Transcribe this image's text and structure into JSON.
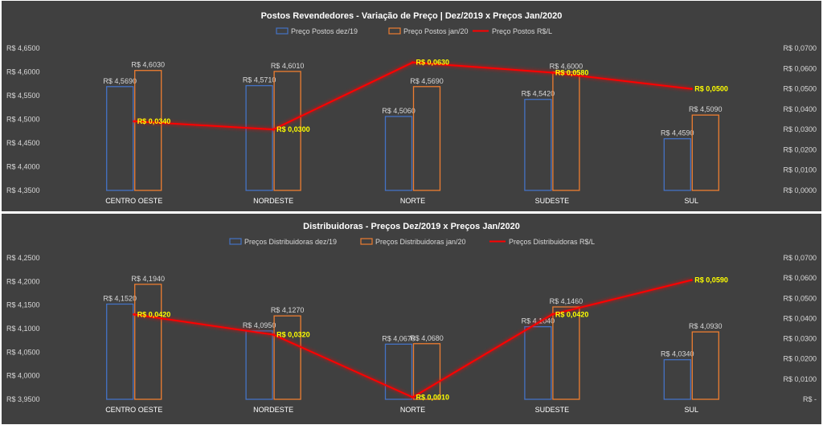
{
  "colors": {
    "background": "#404040",
    "series_dez": "#4472c4",
    "series_jan": "#ed7d31",
    "series_diff": "#ff0000",
    "diff_label": "#ffff00",
    "text": "#d9d9d9"
  },
  "chart_data": [
    {
      "type": "bar",
      "title": "Postos Revendedores - Variação de Preço  | Dez/2019 x Preços Jan/2020",
      "categories": [
        "CENTRO OESTE",
        "NORDESTE",
        "NORTE",
        "SUDESTE",
        "SUL"
      ],
      "series": [
        {
          "name": "Preço Postos dez/19",
          "axis": "left",
          "kind": "bar",
          "values": [
            4.569,
            4.571,
            4.506,
            4.542,
            4.459
          ],
          "labels": [
            "R$ 4,5690",
            "R$ 4,5710",
            "R$ 4,5060",
            "R$ 4,5420",
            "R$ 4,4590"
          ]
        },
        {
          "name": "Preço Postos jan/20",
          "axis": "left",
          "kind": "bar",
          "values": [
            4.603,
            4.601,
            4.569,
            4.6,
            4.509
          ],
          "labels": [
            "R$ 4,6030",
            "R$ 4,6010",
            "R$ 4,5690",
            "R$ 4,6000",
            "R$ 4,5090"
          ]
        },
        {
          "name": "Preço Postos R$/L",
          "axis": "right",
          "kind": "line",
          "values": [
            0.034,
            0.03,
            0.063,
            0.058,
            0.05
          ],
          "labels": [
            "R$ 0,0340",
            "R$ 0,0300",
            "R$ 0,0630",
            "R$ 0,0580",
            "R$ 0,0500"
          ]
        }
      ],
      "ylim": [
        4.35,
        4.65
      ],
      "y2lim": [
        0.0,
        0.07
      ],
      "yticks": [
        "R$ 4,3500",
        "R$ 4,4000",
        "R$ 4,4500",
        "R$ 4,5000",
        "R$ 4,5500",
        "R$ 4,6000",
        "R$ 4,6500"
      ],
      "y2ticks": [
        "R$ 0,0000",
        "R$ 0,0100",
        "R$ 0,0200",
        "R$ 0,0300",
        "R$ 0,0400",
        "R$ 0,0500",
        "R$ 0,0600",
        "R$ 0,0700"
      ],
      "legend_position": "top",
      "grid": false
    },
    {
      "type": "bar",
      "title": "Distribuidoras - Preços Dez/2019 x Preços Jan/2020",
      "categories": [
        "CENTRO OESTE",
        "NORDESTE",
        "NORTE",
        "SUDESTE",
        "SUL"
      ],
      "series": [
        {
          "name": "Preços Distribuidoras dez/19",
          "axis": "left",
          "kind": "bar",
          "values": [
            4.152,
            4.095,
            4.067,
            4.104,
            4.034
          ],
          "labels": [
            "R$ 4,1520",
            "R$ 4,0950",
            "R$ 4,0670",
            "R$ 4,1040",
            "R$ 4,0340"
          ]
        },
        {
          "name": "Preços Distribuidoras jan/20",
          "axis": "left",
          "kind": "bar",
          "values": [
            4.194,
            4.127,
            4.068,
            4.146,
            4.093
          ],
          "labels": [
            "R$ 4,1940",
            "R$ 4,1270",
            "R$ 4,0680",
            "R$ 4,1460",
            "R$ 4,0930"
          ]
        },
        {
          "name": "Preços Distribuidoras R$/L",
          "axis": "right",
          "kind": "line",
          "values": [
            0.042,
            0.032,
            0.001,
            0.042,
            0.059
          ],
          "labels": [
            "R$ 0,0420",
            "R$ 0,0320",
            "R$ 0,0010",
            "R$ 0,0420",
            "R$ 0,0590"
          ]
        }
      ],
      "ylim": [
        3.95,
        4.25
      ],
      "y2lim": [
        0.0,
        0.07
      ],
      "yticks": [
        "R$ 3,9500",
        "R$ 4,0000",
        "R$ 4,0500",
        "R$ 4,1000",
        "R$ 4,1500",
        "R$ 4,2000",
        "R$ 4,2500"
      ],
      "y2ticks": [
        "R$ -",
        "R$ 0,0100",
        "R$ 0,0200",
        "R$ 0,0300",
        "R$ 0,0400",
        "R$ 0,0500",
        "R$ 0,0600",
        "R$ 0,0700"
      ],
      "legend_position": "top",
      "grid": false
    }
  ]
}
